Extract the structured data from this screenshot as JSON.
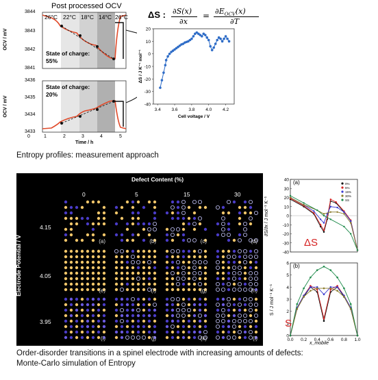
{
  "ocv_panel": {
    "title": "Post processed OCV",
    "temps": [
      "26°C",
      "22°C",
      "18°C",
      "14°C",
      "26°C"
    ],
    "soc_label_top": "State of charge:",
    "soc_value_top": "55%",
    "soc_label_bottom": "State of charge:",
    "soc_value_bottom": "20%",
    "ylabel": "OCV / mV",
    "xlabel": "Time / h",
    "top_ticks": [
      "3844",
      "3843",
      "3842",
      "3841"
    ],
    "bottom_ticks": [
      "3436",
      "3435",
      "3434",
      "3433"
    ],
    "x_ticks": [
      "0",
      "1",
      "2",
      "3",
      "4",
      "5"
    ]
  },
  "equation": {
    "lhs": "ΔS :",
    "num1": "∂S(x)",
    "den1": "∂x",
    "eq": "=",
    "num2": "∂E",
    "num2_sub": "OCV",
    "num2_rest": "(x)",
    "den2": "∂T"
  },
  "chart_data": {
    "type": "scatter",
    "xlabel": "Cell voltage / V",
    "ylabel": "ΔS / J K⁻¹ mol⁻¹",
    "xlim": [
      3.35,
      4.3
    ],
    "ylim": [
      -40,
      20
    ],
    "x_ticks": [
      "3.4",
      "3.6",
      "3.8",
      "4.0",
      "4.2"
    ],
    "y_ticks": [
      "20",
      "10",
      "0",
      "-10",
      "-20",
      "-30",
      "-40"
    ],
    "series": [
      {
        "color": "#2e6cc7",
        "x": [
          3.43,
          3.45,
          3.47,
          3.49,
          3.5,
          3.52,
          3.54,
          3.56,
          3.58,
          3.6,
          3.62,
          3.64,
          3.66,
          3.68,
          3.7,
          3.72,
          3.74,
          3.76,
          3.78,
          3.8,
          3.82,
          3.84,
          3.86,
          3.88,
          3.9,
          3.92,
          3.94,
          3.96,
          3.98,
          4.0,
          4.02,
          4.04,
          4.06,
          4.08,
          4.1,
          4.12,
          4.14,
          4.16,
          4.18,
          4.2,
          4.22,
          4.24
        ],
        "y": [
          -27,
          -21,
          -15,
          -9,
          -5,
          -2,
          0,
          1.5,
          2.5,
          3.5,
          4.5,
          5.5,
          6.5,
          7.5,
          8,
          9,
          9.5,
          10,
          11,
          12,
          14,
          16,
          17,
          16,
          15,
          14,
          16,
          15,
          13,
          11,
          6,
          3,
          5,
          8,
          11,
          13,
          12,
          10,
          12,
          14,
          12,
          10
        ]
      }
    ]
  },
  "caption1": "Entropy profiles: measurement approach",
  "mc_panel": {
    "title": "Defect Content (%)",
    "cols": [
      "0",
      "5",
      "15",
      "30"
    ],
    "ylabel": "Electrode Potential / V",
    "rows": [
      "4.15",
      "4.05",
      "3.95"
    ],
    "panel_labels": [
      "(a)",
      "(b)",
      "(c)",
      "(d)",
      "(e)",
      "(f)",
      "(g)",
      "(h)",
      "(i)",
      "(j)",
      "(k)",
      "(l)"
    ]
  },
  "right_top": {
    "label": "(a)",
    "symbol": "ΔS",
    "legend": [
      "0%",
      "5%",
      "15%",
      "30%",
      "SS"
    ],
    "legend_colors": [
      "#111111",
      "#d62020",
      "#3a3ad0",
      "#8a7a2a",
      "#1e8a4a"
    ],
    "y_ticks": [
      "40",
      "30",
      "20",
      "10",
      "0",
      "-10",
      "-20",
      "-30",
      "-40"
    ],
    "ylabel": "∂S/∂x / J mol⁻¹ K⁻¹"
  },
  "right_bottom": {
    "label": "(b)",
    "symbol": "S",
    "y_ticks": [
      "6",
      "5",
      "4",
      "3",
      "2",
      "1",
      "0"
    ],
    "x_ticks": [
      "0.0",
      "0.2",
      "0.4",
      "0.6",
      "0.8",
      "1.0"
    ],
    "xlabel": "x_mobile",
    "ylabel": "S / J mol⁻¹ K⁻¹"
  },
  "caption2_line1": "Order-disorder transitions in a spinel electrode with increasing amounts of defects:",
  "caption2_line2": "Monte-Carlo simulation of Entropy"
}
